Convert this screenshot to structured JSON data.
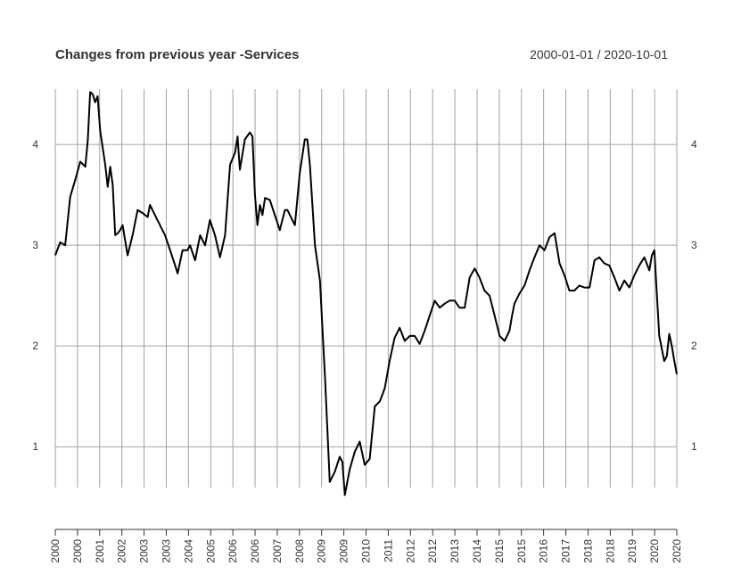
{
  "chart_data": {
    "type": "line",
    "title": "Changes from previous year -Services",
    "date_range": "2000-01-01 / 2020-10-01",
    "ylim": [
      0.4,
      4.55
    ],
    "y_ticks": [
      1,
      2,
      3,
      4
    ],
    "y_tick_labels": [
      "1",
      "2",
      "3",
      "4"
    ],
    "x_ticks": [
      "2000",
      "2000",
      "2001",
      "2002",
      "2003",
      "2003",
      "2004",
      "2005",
      "2006",
      "2006",
      "2007",
      "2008",
      "2009",
      "2009",
      "2010",
      "2011",
      "2012",
      "2012",
      "2013",
      "2014",
      "2015",
      "2015",
      "2016",
      "2017",
      "2018",
      "2018",
      "2019",
      "2020",
      "2020"
    ],
    "grid": true,
    "x": [
      "2000-01-01",
      "2000-03-01",
      "2000-05-01",
      "2000-07-01",
      "2000-09-01",
      "2000-11-01",
      "2001-01-01",
      "2001-02-01",
      "2001-03-01",
      "2001-04-01",
      "2001-05-01",
      "2001-06-01",
      "2001-07-01",
      "2001-09-01",
      "2001-10-01",
      "2001-11-01",
      "2001-12-01",
      "2002-01-01",
      "2002-02-01",
      "2002-03-01",
      "2002-04-01",
      "2002-06-01",
      "2002-08-01",
      "2002-10-01",
      "2002-12-01",
      "2003-02-01",
      "2003-03-01",
      "2003-05-01",
      "2003-07-01",
      "2003-09-01",
      "2003-11-01",
      "2004-01-01",
      "2004-02-01",
      "2004-04-01",
      "2004-06-01",
      "2004-07-01",
      "2004-09-01",
      "2004-11-01",
      "2005-01-01",
      "2005-03-01",
      "2005-05-01",
      "2005-07-01",
      "2005-09-01",
      "2005-11-01",
      "2006-01-01",
      "2006-02-01",
      "2006-03-01",
      "2006-05-01",
      "2006-07-01",
      "2006-08-01",
      "2006-09-01",
      "2006-10-01",
      "2006-11-01",
      "2006-12-01",
      "2007-01-01",
      "2007-03-01",
      "2007-05-01",
      "2007-07-01",
      "2007-09-01",
      "2007-10-01",
      "2007-11-01",
      "2008-01-01",
      "2008-03-01",
      "2008-05-01",
      "2008-06-01",
      "2008-07-01",
      "2008-09-01",
      "2008-11-01",
      "2009-01-01",
      "2009-03-01",
      "2009-05-01",
      "2009-07-01",
      "2009-08-01",
      "2009-09-01",
      "2009-11-01",
      "2010-01-01",
      "2010-03-01",
      "2010-05-01",
      "2010-07-01",
      "2010-09-01",
      "2010-11-01",
      "2011-01-01",
      "2011-03-01",
      "2011-05-01",
      "2011-07-01",
      "2011-09-01",
      "2011-11-01",
      "2012-01-01",
      "2012-03-01",
      "2012-05-01",
      "2012-07-01",
      "2012-09-01",
      "2012-11-01",
      "2013-01-01",
      "2013-03-01",
      "2013-05-01",
      "2013-07-01",
      "2013-09-01",
      "2013-11-01",
      "2014-01-01",
      "2014-03-01",
      "2014-05-01",
      "2014-07-01",
      "2014-09-01",
      "2014-11-01",
      "2015-01-01",
      "2015-03-01",
      "2015-04-01",
      "2015-05-01",
      "2015-07-01",
      "2015-09-01",
      "2015-11-01",
      "2016-01-01",
      "2016-03-01",
      "2016-05-01",
      "2016-07-01",
      "2016-09-01",
      "2016-11-01",
      "2017-01-01",
      "2017-03-01",
      "2017-05-01",
      "2017-07-01",
      "2017-09-01",
      "2017-11-01",
      "2018-01-01",
      "2018-03-01",
      "2018-05-01",
      "2018-07-01",
      "2018-09-01",
      "2018-11-01",
      "2019-01-01",
      "2019-03-01",
      "2019-05-01",
      "2019-07-01",
      "2019-09-01",
      "2019-11-01",
      "2019-12-01",
      "2020-01-01",
      "2020-03-01",
      "2020-05-01",
      "2020-06-01",
      "2020-07-01",
      "2020-08-01",
      "2020-09-01",
      "2020-10-01"
    ],
    "series": [
      {
        "values": [
          2.9,
          3.03,
          3.0,
          3.48,
          3.65,
          3.83,
          3.78,
          4.05,
          4.52,
          4.5,
          4.42,
          4.48,
          4.14,
          3.8,
          3.58,
          3.78,
          3.6,
          3.1,
          3.12,
          3.15,
          3.2,
          2.9,
          3.1,
          3.35,
          3.32,
          3.28,
          3.4,
          3.3,
          3.2,
          3.1,
          2.95,
          2.8,
          2.72,
          2.95,
          2.95,
          3.0,
          2.85,
          3.1,
          3.0,
          3.25,
          3.1,
          2.88,
          3.1,
          3.8,
          3.92,
          4.08,
          3.75,
          4.05,
          4.12,
          4.08,
          3.5,
          3.2,
          3.4,
          3.3,
          3.47,
          3.45,
          3.3,
          3.15,
          3.35,
          3.35,
          3.3,
          3.2,
          3.72,
          4.05,
          4.05,
          3.8,
          3.0,
          2.65,
          1.7,
          0.65,
          0.75,
          0.9,
          0.85,
          0.52,
          0.78,
          0.95,
          1.05,
          0.82,
          0.88,
          1.4,
          1.45,
          1.58,
          1.85,
          2.08,
          2.18,
          2.05,
          2.1,
          2.1,
          2.02,
          2.15,
          2.3,
          2.45,
          2.38,
          2.42,
          2.45,
          2.45,
          2.38,
          2.38,
          2.68,
          2.77,
          2.68,
          2.55,
          2.5,
          2.3,
          2.1,
          2.05,
          2.15,
          2.3,
          2.42,
          2.52,
          2.6,
          2.75,
          2.88,
          3.0,
          2.95,
          3.08,
          3.12,
          2.82,
          2.7,
          2.55,
          2.55,
          2.6,
          2.58,
          2.58,
          2.85,
          2.88,
          2.82,
          2.8,
          2.68,
          2.55,
          2.65,
          2.58,
          2.7,
          2.8,
          2.88,
          2.75,
          2.9,
          2.95,
          2.1,
          1.85,
          1.9,
          2.12,
          2.0,
          1.85,
          1.72
        ]
      }
    ]
  }
}
